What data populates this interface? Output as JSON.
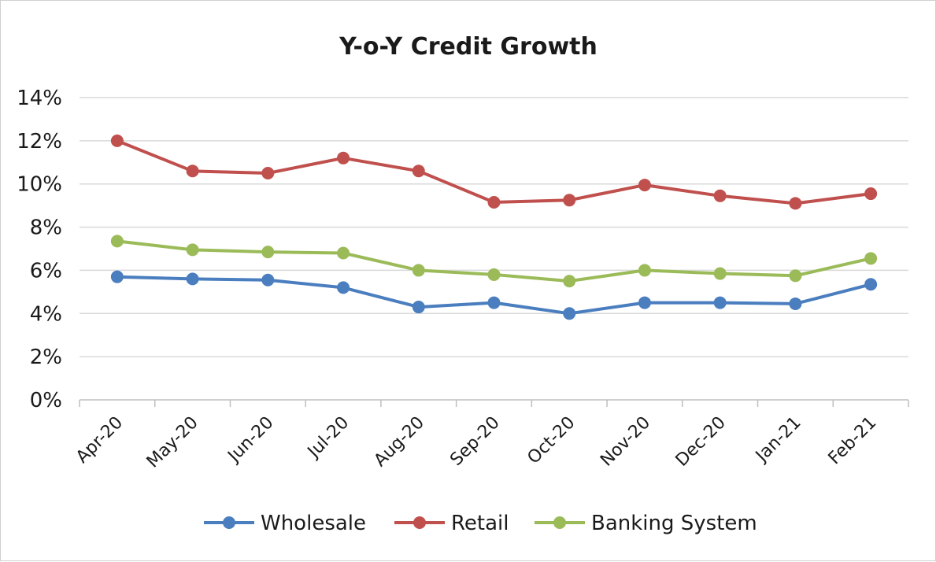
{
  "chart_data": {
    "type": "line",
    "title": "Y-o-Y Credit Growth",
    "xlabel": "",
    "ylabel": "",
    "categories": [
      "Apr-20",
      "May-20",
      "Jun-20",
      "Jul-20",
      "Aug-20",
      "Sep-20",
      "Oct-20",
      "Nov-20",
      "Dec-20",
      "Jan-21",
      "Feb-21"
    ],
    "yticks": [
      "0%",
      "2%",
      "4%",
      "6%",
      "8%",
      "10%",
      "12%",
      "14%"
    ],
    "ylim": [
      0,
      14
    ],
    "y_unit": "%",
    "grid": true,
    "legend_position": "bottom",
    "series": [
      {
        "name": "Wholesale",
        "color": "#4a7ebf",
        "values": [
          5.7,
          5.6,
          5.55,
          5.2,
          4.3,
          4.5,
          4.0,
          4.5,
          4.5,
          4.45,
          5.35
        ]
      },
      {
        "name": "Retail",
        "color": "#c0504d",
        "values": [
          12.0,
          10.6,
          10.5,
          11.2,
          10.6,
          9.15,
          9.25,
          9.95,
          9.45,
          9.1,
          9.55
        ]
      },
      {
        "name": "Banking System",
        "color": "#9bbb59",
        "values": [
          7.35,
          6.95,
          6.85,
          6.8,
          6.0,
          5.8,
          5.5,
          6.0,
          5.85,
          5.75,
          6.55
        ]
      }
    ]
  }
}
